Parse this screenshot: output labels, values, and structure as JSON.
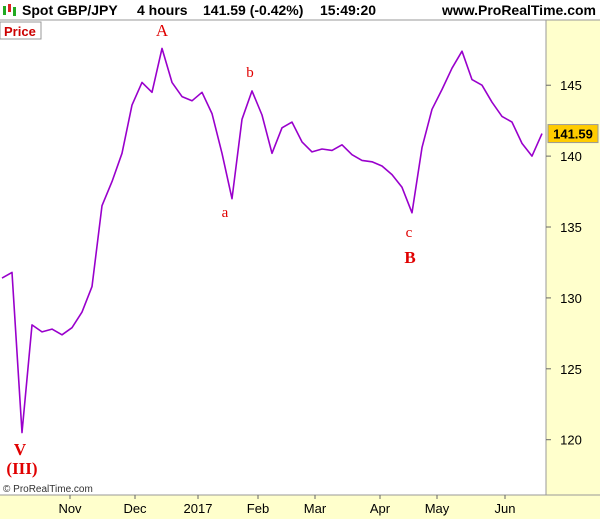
{
  "header": {
    "symbol": "Spot GBP/JPY",
    "timeframe": "4 hours",
    "quote": "141.59 (-0.42%)",
    "time": "15:49:20",
    "site": "www.ProRealTime.com"
  },
  "chart_data": {
    "type": "line",
    "panel_label": "Price",
    "copyright": "© ProRealTime.com",
    "series": [
      {
        "name": "Price",
        "color": "#9900cc",
        "values": [
          131.4,
          131.8,
          120.5,
          128.1,
          127.6,
          127.8,
          127.4,
          127.9,
          129.0,
          130.8,
          136.5,
          138.2,
          140.2,
          143.6,
          145.2,
          144.5,
          147.6,
          145.2,
          144.2,
          143.9,
          144.5,
          143.0,
          140.2,
          137.0,
          142.6,
          144.6,
          142.9,
          140.2,
          142.0,
          142.4,
          141.0,
          140.3,
          140.5,
          140.4,
          140.8,
          140.1,
          139.7,
          139.6,
          139.3,
          138.7,
          137.8,
          136.0,
          140.6,
          143.3,
          144.7,
          146.2,
          147.4,
          145.4,
          145.0,
          143.8,
          142.8,
          142.4,
          140.9,
          140.0,
          141.59
        ]
      }
    ],
    "xlim": [
      -0.2,
      54.4
    ],
    "xticks": [
      {
        "value": 6.8,
        "label": "Nov"
      },
      {
        "value": 13.3,
        "label": "Dec"
      },
      {
        "value": 19.6,
        "label": "2017"
      },
      {
        "value": 25.6,
        "label": "Feb"
      },
      {
        "value": 31.3,
        "label": "Mar"
      },
      {
        "value": 37.8,
        "label": "Apr"
      },
      {
        "value": 43.5,
        "label": "May"
      },
      {
        "value": 50.3,
        "label": "Jun"
      }
    ],
    "ylim": [
      116.1,
      149.6
    ],
    "yticks": [
      120,
      125,
      130,
      135,
      140,
      145
    ],
    "grid": false,
    "annotations": [
      "A",
      "b",
      "a",
      "c",
      "B",
      "V",
      "(III)"
    ]
  }
}
